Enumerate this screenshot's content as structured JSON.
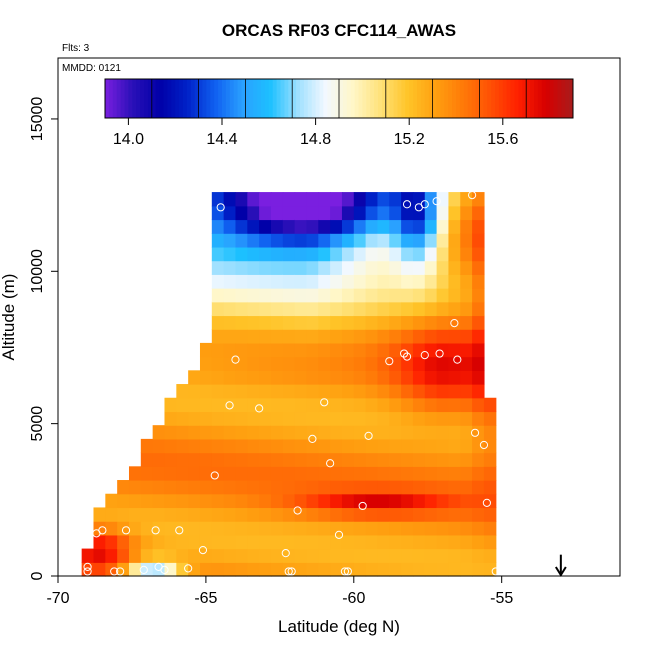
{
  "chart_data": {
    "type": "heatmap",
    "title": "ORCAS RF03 CFC114_AWAS",
    "xlabel": "Latitude (deg N)",
    "ylabel": "Altitude (m)",
    "flts_label": "Flts: 3",
    "mmdd_label": "MMDD: 0121",
    "xlim": [
      -70,
      -51
    ],
    "ylim": [
      0,
      17000
    ],
    "x_ticks": [
      -70,
      -65,
      -60,
      -55
    ],
    "x_tick_labels": [
      "-70",
      "-65",
      "-60",
      "-55"
    ],
    "y_ticks": [
      0,
      5000,
      10000,
      15000
    ],
    "y_tick_labels": [
      "0",
      "5000",
      "10000",
      "15000"
    ],
    "colorbar": {
      "range": [
        13.9,
        15.9
      ],
      "ticks": [
        14.0,
        14.4,
        14.8,
        15.2,
        15.6
      ],
      "tick_labels": [
        "14.0",
        "14.4",
        "14.8",
        "15.2",
        "15.6"
      ],
      "colors": [
        "#7a1fe0",
        "#2a10b8",
        "#0000a8",
        "#0022c8",
        "#1060f0",
        "#2aa0ff",
        "#1cc0ff",
        "#9ee0ff",
        "#f2f8ff",
        "#fff7c8",
        "#ffe27a",
        "#ffc428",
        "#ffa010",
        "#ff7a08",
        "#ff5004",
        "#ff2000",
        "#d80000",
        "#a81c1c"
      ]
    },
    "grid": {
      "lat_start": -69.2,
      "lat_step": 0.4,
      "alt_start": 0,
      "alt_step": 450,
      "upper_boundary": [
        [
          -69.2,
          500
        ],
        [
          -68.8,
          1200
        ],
        [
          -68.6,
          2100
        ],
        [
          -68.0,
          2400
        ],
        [
          -67.2,
          3800
        ],
        [
          -66.5,
          5000
        ],
        [
          -65.8,
          6000
        ],
        [
          -65.0,
          7200
        ],
        [
          -64.6,
          8600
        ],
        [
          -64.6,
          12300
        ],
        [
          -57.5,
          12300
        ],
        [
          -57.3,
          12400
        ],
        [
          -56.5,
          12550
        ],
        [
          -55.5,
          12550
        ],
        [
          -55.4,
          5500
        ],
        [
          -55.0,
          5000
        ],
        [
          -55.0,
          1200
        ]
      ],
      "anomalies": [
        {
          "lat": -61.5,
          "alt": 12200,
          "value": -1.1,
          "slat": 3.2,
          "salt": 1300
        },
        {
          "lat": -57.8,
          "alt": 11800,
          "value": -0.8,
          "slat": 0.9,
          "salt": 1700
        },
        {
          "lat": -57.0,
          "alt": 6800,
          "value": 0.3,
          "slat": 1.6,
          "salt": 1500
        },
        {
          "lat": -59.3,
          "alt": 2400,
          "value": 0.35,
          "slat": 2.5,
          "salt": 380
        },
        {
          "lat": -68.6,
          "alt": 900,
          "value": 0.45,
          "slat": 1.1,
          "salt": 700
        },
        {
          "lat": -66.8,
          "alt": 300,
          "value": -0.7,
          "slat": 0.9,
          "salt": 280
        },
        {
          "lat": -55.4,
          "alt": 8500,
          "value": 0.25,
          "slat": 0.6,
          "salt": 5000
        }
      ]
    },
    "samples": [
      {
        "lat": -64.5,
        "alt": 12100
      },
      {
        "lat": -58.2,
        "alt": 12200
      },
      {
        "lat": -57.8,
        "alt": 12100
      },
      {
        "lat": -57.6,
        "alt": 12200
      },
      {
        "lat": -57.2,
        "alt": 12300
      },
      {
        "lat": -56.0,
        "alt": 12500
      },
      {
        "lat": -56.6,
        "alt": 8300
      },
      {
        "lat": -58.3,
        "alt": 7300
      },
      {
        "lat": -58.2,
        "alt": 7200
      },
      {
        "lat": -57.6,
        "alt": 7250
      },
      {
        "lat": -57.1,
        "alt": 7300
      },
      {
        "lat": -56.5,
        "alt": 7100
      },
      {
        "lat": -58.8,
        "alt": 7050
      },
      {
        "lat": -64.0,
        "alt": 7100
      },
      {
        "lat": -64.2,
        "alt": 5600
      },
      {
        "lat": -63.2,
        "alt": 5500
      },
      {
        "lat": -61.0,
        "alt": 5700
      },
      {
        "lat": -61.4,
        "alt": 4500
      },
      {
        "lat": -59.5,
        "alt": 4600
      },
      {
        "lat": -55.9,
        "alt": 4700
      },
      {
        "lat": -55.6,
        "alt": 4300
      },
      {
        "lat": -60.8,
        "alt": 3700
      },
      {
        "lat": -64.7,
        "alt": 3300
      },
      {
        "lat": -55.5,
        "alt": 2400
      },
      {
        "lat": -59.7,
        "alt": 2300
      },
      {
        "lat": -61.9,
        "alt": 2150
      },
      {
        "lat": -68.5,
        "alt": 1500
      },
      {
        "lat": -68.7,
        "alt": 1400
      },
      {
        "lat": -67.7,
        "alt": 1500
      },
      {
        "lat": -66.7,
        "alt": 1500
      },
      {
        "lat": -65.9,
        "alt": 1500
      },
      {
        "lat": -60.5,
        "alt": 1350
      },
      {
        "lat": -55.0,
        "alt": 1100
      },
      {
        "lat": -65.1,
        "alt": 850
      },
      {
        "lat": -62.3,
        "alt": 750
      },
      {
        "lat": -69.0,
        "alt": 300
      },
      {
        "lat": -69.0,
        "alt": 150
      },
      {
        "lat": -68.1,
        "alt": 150
      },
      {
        "lat": -67.9,
        "alt": 150
      },
      {
        "lat": -67.1,
        "alt": 200
      },
      {
        "lat": -66.6,
        "alt": 300
      },
      {
        "lat": -66.4,
        "alt": 200
      },
      {
        "lat": -65.6,
        "alt": 250
      },
      {
        "lat": -62.2,
        "alt": 150
      },
      {
        "lat": -62.1,
        "alt": 150
      },
      {
        "lat": -60.3,
        "alt": 150
      },
      {
        "lat": -60.2,
        "alt": 150
      },
      {
        "lat": -55.2,
        "alt": 150
      }
    ],
    "arrow": {
      "lat": -53.0,
      "alt_top": 700,
      "alt_bottom": 0
    }
  }
}
